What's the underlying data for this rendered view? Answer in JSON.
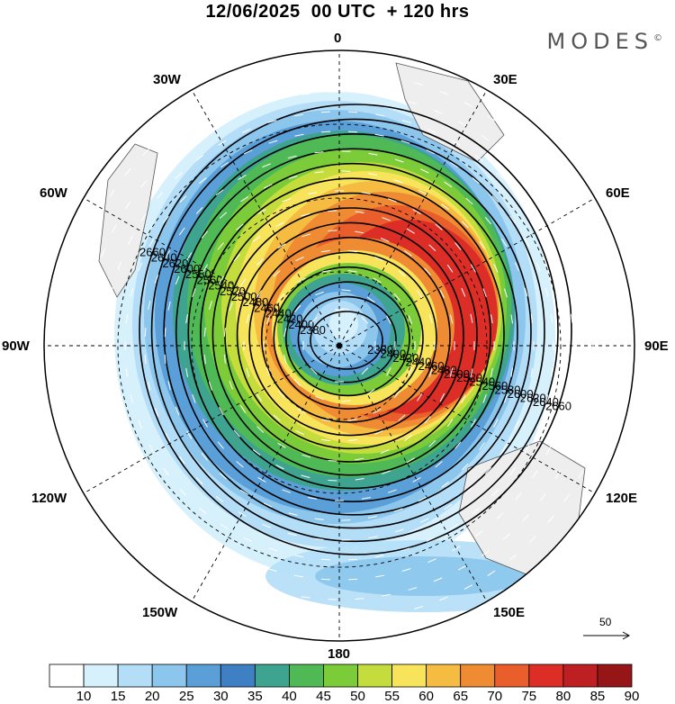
{
  "title": "12/06/2025  00 UTC  + 120 hrs",
  "brand": "MODES",
  "brand_mark": "©",
  "longitude_labels": {
    "n": "0",
    "ne": "30E",
    "ene": "60E",
    "e": "90E",
    "ese": "120E",
    "se": "150E",
    "s": "180",
    "sw": "150W",
    "wsw": "120W",
    "w": "90W",
    "wnw": "60W",
    "nw": "30W"
  },
  "wind_reference": {
    "value": "50"
  },
  "colorbar": {
    "labels": [
      "10",
      "15",
      "20",
      "25",
      "30",
      "35",
      "40",
      "45",
      "50",
      "55",
      "60",
      "65",
      "70",
      "75",
      "80",
      "85",
      "90"
    ],
    "colors": [
      "#ffffff",
      "#d6f0fc",
      "#b4def8",
      "#8cc6ec",
      "#5a9fd8",
      "#3f7fc4",
      "#3fa48f",
      "#4fba55",
      "#7ccc3a",
      "#c4dc3c",
      "#f8e45a",
      "#f6bc42",
      "#ef8c33",
      "#ea5e2c",
      "#dc2e26",
      "#be1f22",
      "#961618"
    ]
  },
  "contours": [
    {
      "label": "2380"
    },
    {
      "label": "2400"
    },
    {
      "label": "2420"
    },
    {
      "label": "2440"
    },
    {
      "label": "2460"
    },
    {
      "label": "2480"
    },
    {
      "label": "2500"
    },
    {
      "label": "2520"
    },
    {
      "label": "2540"
    },
    {
      "label": "2560"
    },
    {
      "label": "2580"
    },
    {
      "label": "2600"
    },
    {
      "label": "2620"
    },
    {
      "label": "2640"
    },
    {
      "label": "2660"
    }
  ]
}
